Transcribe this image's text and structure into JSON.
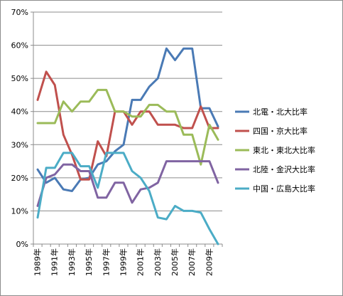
{
  "chart_data": {
    "type": "line",
    "title": "",
    "xlabel": "",
    "ylabel": "",
    "ylim": [
      0,
      70
    ],
    "yticks": [
      0,
      10,
      20,
      30,
      40,
      50,
      60,
      70
    ],
    "ytick_labels": [
      "0%",
      "10%",
      "20%",
      "30%",
      "40%",
      "50%",
      "60%",
      "70%"
    ],
    "x": [
      "1989年",
      "1990年",
      "1991年",
      "1992年",
      "1993年",
      "1994年",
      "1995年",
      "1996年",
      "1997年",
      "1998年",
      "1999年",
      "2000年",
      "2001年",
      "2002年",
      "2003年",
      "2004年",
      "2005年",
      "2006年",
      "2007年",
      "2008年",
      "2009年",
      "2010年"
    ],
    "xtick_labels": [
      "1989年",
      "1991年",
      "1993年",
      "1995年",
      "1997年",
      "1999年",
      "2001年",
      "2003年",
      "2005年",
      "2007年",
      "2009年"
    ],
    "grid": true,
    "legend_position": "right",
    "series": [
      {
        "name": "北電・北大比率",
        "color": "#4a7ab5",
        "values": [
          22.5,
          18.5,
          20,
          16.5,
          16,
          19.5,
          20,
          24,
          25,
          28,
          30,
          43.5,
          43.5,
          47.5,
          50,
          59,
          55.5,
          59,
          59,
          41,
          41,
          35.5
        ]
      },
      {
        "name": "四国・京大比率",
        "color": "#c0504d",
        "values": [
          43.5,
          52,
          48,
          33,
          27,
          19.5,
          19.5,
          31,
          26.5,
          40,
          40,
          36,
          40,
          40,
          36,
          36,
          36,
          35,
          35,
          41.5,
          35,
          35
        ]
      },
      {
        "name": "東北・東北大比率",
        "color": "#9bbb59",
        "values": [
          36.5,
          36.5,
          36.5,
          43,
          40,
          43,
          43,
          46.5,
          46.5,
          40,
          40,
          38.5,
          38.5,
          42,
          42,
          40,
          40,
          33,
          33,
          24,
          36,
          31.5
        ]
      },
      {
        "name": "北陸・金沢大比率",
        "color": "#8064a2",
        "values": [
          11.5,
          20,
          21,
          24,
          24,
          22,
          22,
          14,
          14,
          18.5,
          18.5,
          12.5,
          16.5,
          17,
          18.5,
          25,
          25,
          25,
          25,
          25,
          25,
          18.5
        ]
      },
      {
        "name": "中国・広島大比率",
        "color": "#4bacc6",
        "values": [
          8,
          23,
          23,
          27.5,
          27.5,
          23.5,
          23.5,
          17,
          27.5,
          27.5,
          27.5,
          22,
          20,
          16,
          8,
          7.5,
          11.5,
          10,
          10,
          9.5,
          4.5,
          0
        ]
      }
    ]
  }
}
